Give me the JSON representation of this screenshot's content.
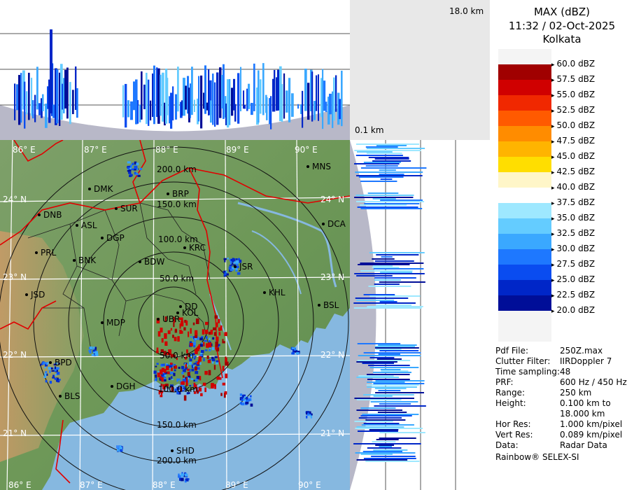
{
  "header": {
    "product": "MAX (dBZ)",
    "datetime": "11:32 / 02-Oct-2025",
    "station": "Kolkata"
  },
  "profile_labels": {
    "top_height": "18.0 km",
    "bottom_height": "0.1 km"
  },
  "map": {
    "colors": {
      "sea": "#86b8e0",
      "land_low": "#6f9a5a",
      "land_high": "#d8a070",
      "border": "#e00000",
      "district": "#202020",
      "grid": "#ffffff",
      "ring": "#111111"
    },
    "lon_labels": [
      "86° E",
      "87° E",
      "88° E",
      "89° E",
      "90° E"
    ],
    "lat_labels": [
      "24° N",
      "23° N",
      "22° N",
      "21° N"
    ],
    "range_labels": [
      "50.0 km",
      "100.0 km",
      "150.0 km",
      "200.0 km"
    ],
    "stations": [
      {
        "code": "MNS"
      },
      {
        "code": "DMK"
      },
      {
        "code": "BRP"
      },
      {
        "code": "DNB"
      },
      {
        "code": "SUR"
      },
      {
        "code": "ASL"
      },
      {
        "code": "DCA"
      },
      {
        "code": "DGP"
      },
      {
        "code": "KRC"
      },
      {
        "code": "PRL"
      },
      {
        "code": "BNK"
      },
      {
        "code": "BDW"
      },
      {
        "code": "JSR"
      },
      {
        "code": "JSD"
      },
      {
        "code": "KHL"
      },
      {
        "code": "DD"
      },
      {
        "code": "KOL"
      },
      {
        "code": "BSL"
      },
      {
        "code": "MDP"
      },
      {
        "code": "UBR"
      },
      {
        "code": "BPD"
      },
      {
        "code": "DGH"
      },
      {
        "code": "BLS"
      },
      {
        "code": "SHD"
      }
    ]
  },
  "legend": {
    "levels": [
      {
        "label": "60.0 dBZ",
        "color": "#f4f4f4"
      },
      {
        "label": "57.5 dBZ",
        "color": "#a00000"
      },
      {
        "label": "55.0 dBZ",
        "color": "#d00000"
      },
      {
        "label": "52.5 dBZ",
        "color": "#f02800"
      },
      {
        "label": "50.0 dBZ",
        "color": "#ff5a00"
      },
      {
        "label": "47.5 dBZ",
        "color": "#ff8c00"
      },
      {
        "label": "45.0 dBZ",
        "color": "#ffb400"
      },
      {
        "label": "42.5 dBZ",
        "color": "#ffde00"
      },
      {
        "label": "40.0 dBZ",
        "color": "#fff6c8"
      },
      {
        "label": "37.5 dBZ",
        "color": "#ffffff"
      },
      {
        "label": "35.0 dBZ",
        "color": "#9ee8ff"
      },
      {
        "label": "32.5 dBZ",
        "color": "#64ccff"
      },
      {
        "label": "30.0 dBZ",
        "color": "#3aa8ff"
      },
      {
        "label": "27.5 dBZ",
        "color": "#1e78ff"
      },
      {
        "label": "25.0 dBZ",
        "color": "#0a4cf0"
      },
      {
        "label": "22.5 dBZ",
        "color": "#0026c8"
      },
      {
        "label": "20.0 dBZ",
        "color": "#000e98"
      },
      {
        "label": "",
        "color": "#f4f4f4"
      },
      {
        "label": "",
        "color": "#f4f4f4"
      }
    ]
  },
  "info": [
    {
      "key": "Pdf File:",
      "value": "250Z.max"
    },
    {
      "key": "Clutter Filter:",
      "value": "IIRDoppler 7"
    },
    {
      "key": "Time sampling:",
      "value": "48"
    },
    {
      "key": "PRF:",
      "value": "600 Hz / 450 Hz"
    },
    {
      "key": "Range:",
      "value": "250 km"
    },
    {
      "key": "Height:",
      "value": "0.100 km to\n18.000 km"
    },
    {
      "key": "Hor Res:",
      "value": "1.000 km/pixel"
    },
    {
      "key": "Vert Res:",
      "value": "0.089 km/pixel"
    },
    {
      "key": "Data:",
      "value": "Radar Data"
    }
  ],
  "footer": "Rainbow® SELEX-SI"
}
